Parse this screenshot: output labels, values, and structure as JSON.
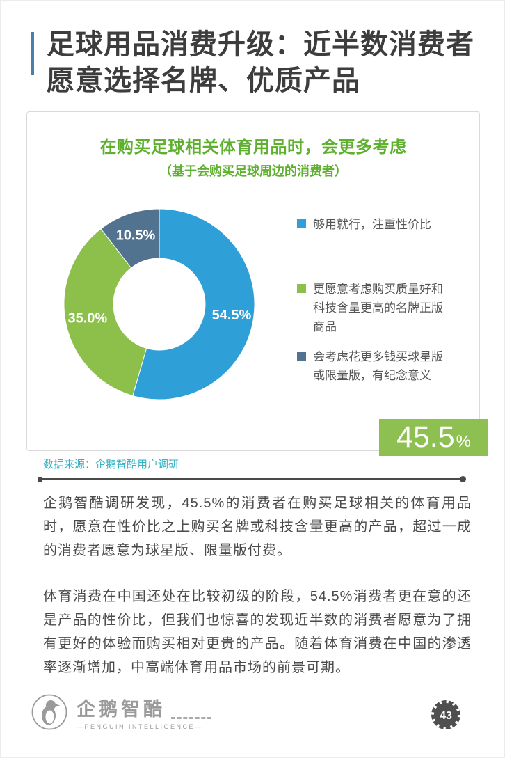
{
  "header": {
    "title_line1": "足球用品消费升级：近半数消费者",
    "title_line2": "愿意选择名牌、优质产品"
  },
  "chart_data": {
    "type": "pie",
    "donut": true,
    "title": "在购买足球相关体育用品时，会更多考虑",
    "subtitle": "（基于会购买足球周边的消费者）",
    "legend_position": "right",
    "start_angle_deg": -90,
    "direction": "clockwise",
    "series": [
      {
        "name": "够用就行，注重性价比",
        "value": 54.5,
        "label": "54.5%",
        "color": "#2f9fd8"
      },
      {
        "name": "更愿意考虑购买质量好和科技含量更高的名牌正版商品",
        "value": 35.0,
        "label": "35.0%",
        "color": "#8cc04b"
      },
      {
        "name": "会考虑花更多钱买球星版或限量版，有纪念意义",
        "value": 10.5,
        "label": "10.5%",
        "color": "#527390"
      }
    ]
  },
  "highlight": {
    "value": "45.5",
    "unit": "%"
  },
  "source": {
    "text": "数据来源：企鹅智酷用户调研"
  },
  "body": {
    "paragraph1": "企鹅智酷调研发现，45.5%的消费者在购买足球相关的体育用品时，愿意在性价比之上购买名牌或科技含量更高的产品，超过一成的消费者愿意为球星版、限量版付费。",
    "paragraph2": "体育消费在中国还处在比较初级的阶段，54.5%消费者更在意的还是产品的性价比，但我们也惊喜的发现近半数的消费者愿意为了拥有更好的体验而购买相对更贵的产品。随着体育消费在中国的渗透率逐渐增加，中高端体育用品市场的前景可期。"
  },
  "footer": {
    "logo_text": "企鹅智酷",
    "logo_subtext": "—PENGUIN INTELLIGENCE—",
    "page_number": "43"
  },
  "colors": {
    "accent-blue": "#4a80ad",
    "title-text": "#3d3d3d",
    "chart-green": "#5fb02f",
    "badge-green": "#8dc051",
    "source-teal": "#35b3c6",
    "body-text": "#4a4a4a",
    "footer-gray": "#9a9a9a",
    "divider": "#4a4a4a",
    "card-border": "#d9d9d9"
  }
}
